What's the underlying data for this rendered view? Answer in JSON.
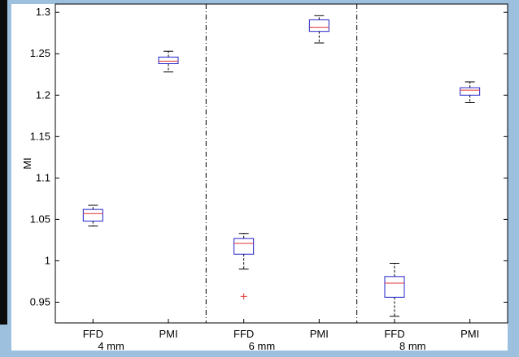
{
  "chart_data": {
    "type": "box",
    "ylabel": "MI",
    "ylim": [
      0.925,
      1.31
    ],
    "yticks": [
      "1.3",
      "1.25",
      "1.2",
      "1.15",
      "1.1",
      "1.05",
      "1",
      "0.95"
    ],
    "groups": [
      {
        "label": "4 mm",
        "boxes": [
          {
            "category": "FFD",
            "whisker_low": 1.042,
            "q1": 1.048,
            "median": 1.057,
            "q3": 1.062,
            "whisker_high": 1.067,
            "outliers": []
          },
          {
            "category": "PMI",
            "whisker_low": 1.228,
            "q1": 1.238,
            "median": 1.241,
            "q3": 1.246,
            "whisker_high": 1.253,
            "outliers": []
          }
        ]
      },
      {
        "label": "6 mm",
        "boxes": [
          {
            "category": "FFD",
            "whisker_low": 0.99,
            "q1": 1.008,
            "median": 1.021,
            "q3": 1.027,
            "whisker_high": 1.033,
            "outliers": [
              0.957
            ]
          },
          {
            "category": "PMI",
            "whisker_low": 1.263,
            "q1": 1.277,
            "median": 1.282,
            "q3": 1.291,
            "whisker_high": 1.296,
            "outliers": []
          }
        ]
      },
      {
        "label": "8 mm",
        "boxes": [
          {
            "category": "FFD",
            "whisker_low": 0.933,
            "q1": 0.956,
            "median": 0.973,
            "q3": 0.981,
            "whisker_high": 0.997,
            "outliers": []
          },
          {
            "category": "PMI",
            "whisker_low": 1.191,
            "q1": 1.2,
            "median": 1.206,
            "q3": 1.209,
            "whisker_high": 1.216,
            "outliers": []
          }
        ]
      }
    ],
    "colors": {
      "box": "#2020c8",
      "median": "#e03030",
      "whisker": "#000000",
      "outlier": "#e03030"
    },
    "grid": false,
    "legend": "none"
  }
}
